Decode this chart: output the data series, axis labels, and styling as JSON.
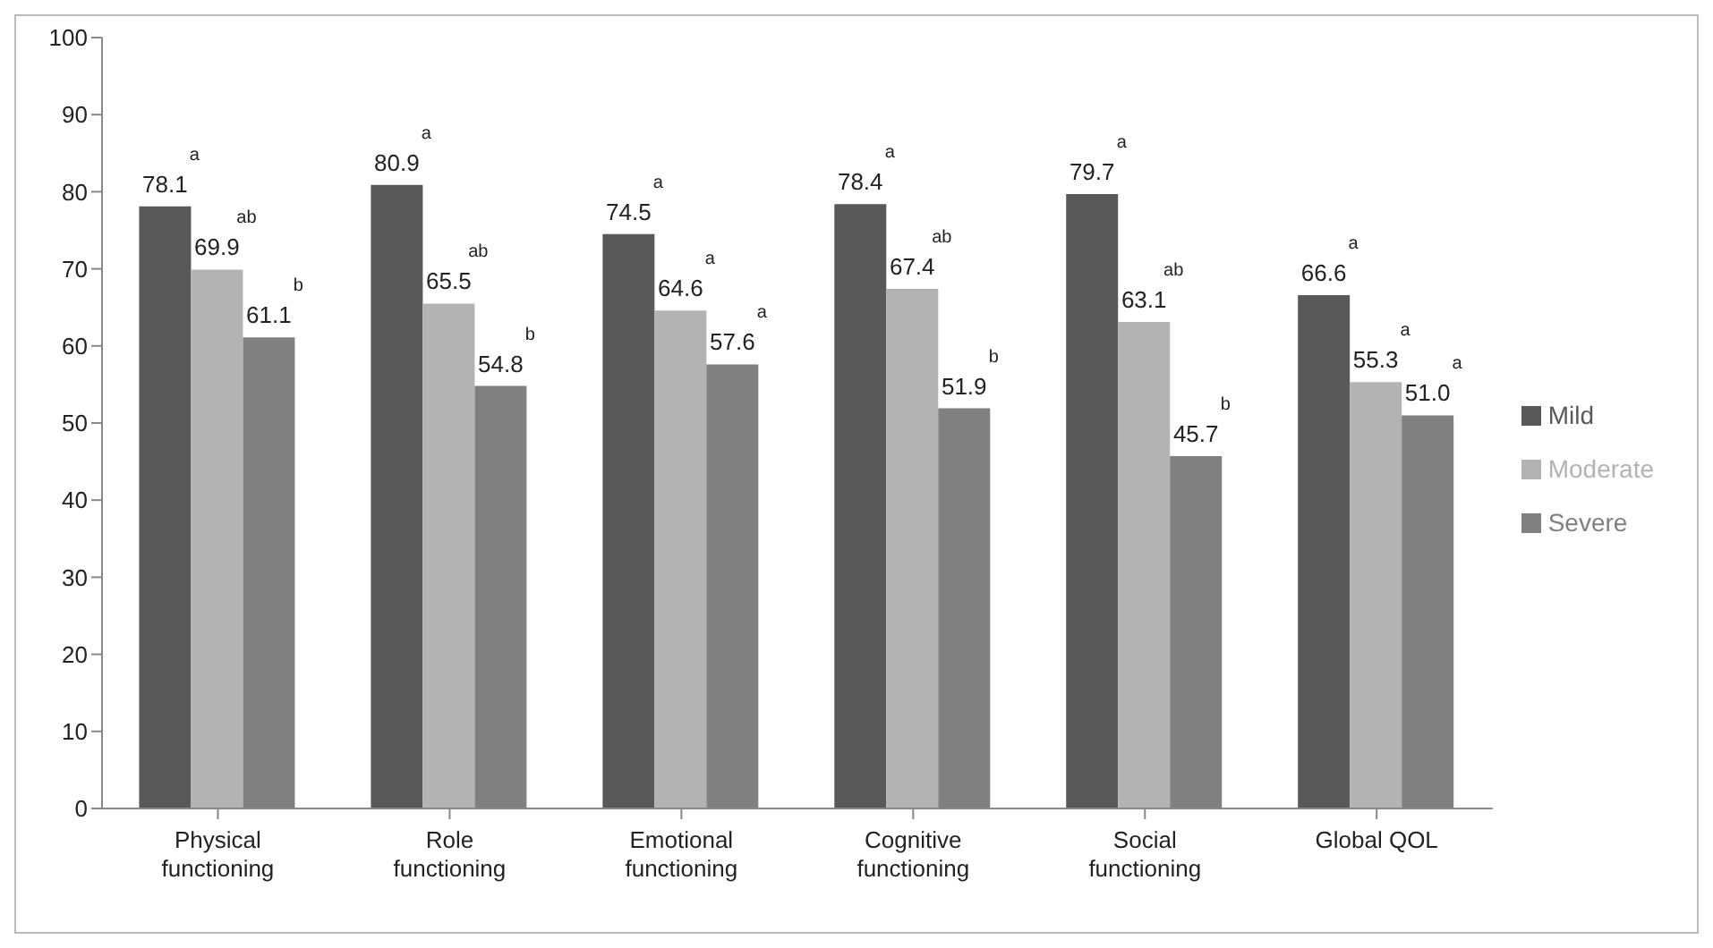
{
  "chart_data": {
    "type": "bar",
    "categories": [
      "Physical functioning",
      "Role functioning",
      "Emotional functioning",
      "Cognitive functioning",
      "Social functioning",
      "Global QOL"
    ],
    "series": [
      {
        "name": "Mild",
        "color": "#595959",
        "values": [
          78.1,
          80.9,
          74.5,
          78.4,
          79.7,
          66.6
        ],
        "value_labels": [
          "78.1",
          "80.9",
          "74.5",
          "78.4",
          "79.7",
          "66.6"
        ]
      },
      {
        "name": "Moderate",
        "color": "#b3b3b3",
        "values": [
          69.9,
          65.5,
          64.6,
          67.4,
          63.1,
          55.3
        ],
        "value_labels": [
          "69.9",
          "65.5",
          "64.6",
          "67.4",
          "63.1",
          "55.3"
        ]
      },
      {
        "name": "Severe",
        "color": "#808080",
        "values": [
          61.1,
          54.8,
          57.6,
          51.9,
          45.7,
          51.0
        ],
        "value_labels": [
          "61.1",
          "54.8",
          "57.6",
          "51.9",
          "45.7",
          "51.0"
        ]
      }
    ],
    "ylim": [
      0,
      100
    ],
    "yticks": [
      0,
      10,
      20,
      30,
      40,
      50,
      60,
      70,
      80,
      90,
      100
    ],
    "legend": "right",
    "annotations": [
      "a",
      "ab",
      "b",
      "a",
      "ab",
      "b",
      "a",
      "a",
      "a",
      "a",
      "ab",
      "b",
      "a",
      "ab",
      "b",
      "a",
      "a",
      "a"
    ]
  }
}
